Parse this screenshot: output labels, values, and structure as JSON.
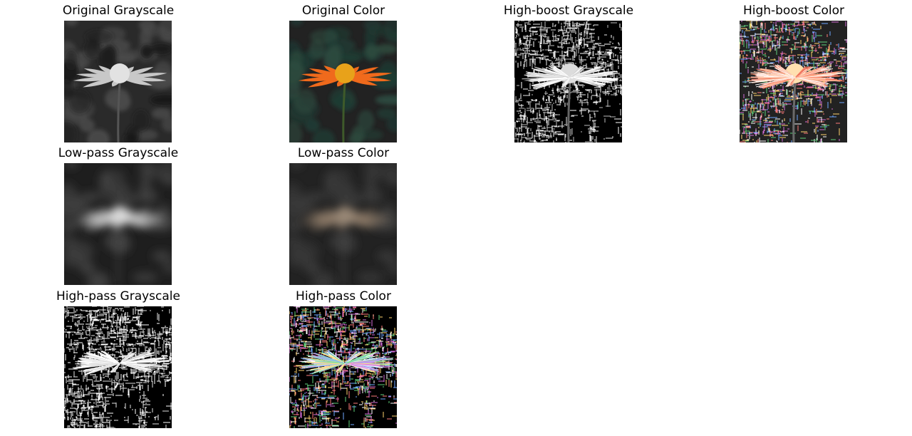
{
  "figure": {
    "panels": [
      {
        "id": "orig-gray",
        "title": "Original Grayscale",
        "style": "orig-gray"
      },
      {
        "id": "orig-color",
        "title": "Original Color",
        "style": "orig-color"
      },
      {
        "id": "hboost-gray",
        "title": "High-boost Grayscale",
        "style": "hboost-gray"
      },
      {
        "id": "hboost-color",
        "title": "High-boost Color",
        "style": "hboost-color"
      },
      {
        "id": "lowpass-gray",
        "title": "Low-pass Grayscale",
        "style": "lowpass-gray"
      },
      {
        "id": "lowpass-color",
        "title": "Low-pass Color",
        "style": "lowpass-color"
      },
      {
        "id": "highpass-gray",
        "title": "High-pass Grayscale",
        "style": "highpass-gray"
      },
      {
        "id": "highpass-color",
        "title": "High-pass Color",
        "style": "highpass-color"
      }
    ]
  },
  "colors": {
    "petal_orange": "#f06a1c",
    "center_yellow": "#e8a21a",
    "leaf_dark_green": "#1f3a33",
    "lowpass_tan": "#8a7866",
    "background_dark": "#222222"
  }
}
